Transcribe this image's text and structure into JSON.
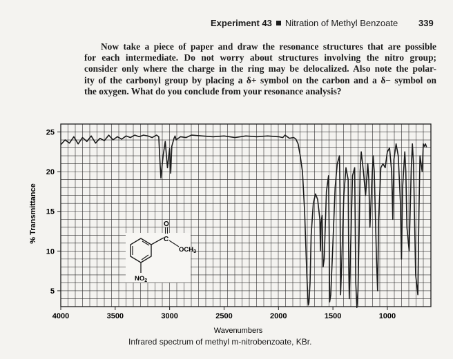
{
  "header": {
    "experiment": "Experiment 43",
    "title": "Nitration of Methyl Benzoate",
    "page_number": "339"
  },
  "paragraph": {
    "lines": [
      "Now take a piece of paper and draw the resonance structures that are possible",
      "for each intermediate. Do not worry about structures involving the nitro group;",
      "consider only where the charge in the ring may be delocalized. Also note the polar-",
      "ity of the carbonyl group by placing a δ+ symbol on the carbon and a δ− symbol on",
      "the oxygen. What do you conclude from your resonance analysis?"
    ]
  },
  "chart_data": {
    "type": "line",
    "title": "Infrared spectrum of methyl m-nitrobenzoate, KBr.",
    "xlabel": "Wavenumbers",
    "ylabel": "% Transmittance",
    "xlim": [
      4000,
      600
    ],
    "ylim": [
      3,
      26
    ],
    "x_ticks": [
      4000,
      3500,
      3000,
      2500,
      2000,
      1500,
      1000
    ],
    "y_ticks": [
      5,
      10,
      15,
      20,
      25
    ],
    "grid": true,
    "series": [
      {
        "name": "methyl m-nitrobenzoate",
        "x": [
          4000,
          3960,
          3920,
          3880,
          3840,
          3800,
          3760,
          3720,
          3680,
          3640,
          3600,
          3560,
          3520,
          3480,
          3440,
          3400,
          3360,
          3320,
          3280,
          3240,
          3200,
          3160,
          3120,
          3100,
          3090,
          3080,
          3060,
          3040,
          3020,
          3000,
          2990,
          2980,
          2960,
          2950,
          2940,
          2900,
          2850,
          2800,
          2700,
          2600,
          2500,
          2400,
          2300,
          2200,
          2100,
          2000,
          1960,
          1940,
          1900,
          1860,
          1840,
          1820,
          1800,
          1780,
          1760,
          1740,
          1730,
          1725,
          1720,
          1710,
          1700,
          1680,
          1660,
          1640,
          1620,
          1615,
          1610,
          1600,
          1590,
          1580,
          1560,
          1540,
          1535,
          1530,
          1520,
          1500,
          1480,
          1460,
          1440,
          1435,
          1430,
          1420,
          1400,
          1380,
          1360,
          1355,
          1350,
          1340,
          1320,
          1300,
          1290,
          1280,
          1270,
          1260,
          1250,
          1240,
          1220,
          1200,
          1180,
          1170,
          1160,
          1140,
          1130,
          1120,
          1100,
          1090,
          1080,
          1060,
          1040,
          1020,
          1000,
          980,
          960,
          950,
          940,
          920,
          900,
          880,
          870,
          860,
          840,
          830,
          820,
          800,
          780,
          770,
          760,
          740,
          720,
          710,
          700,
          680,
          670,
          660,
          650,
          640
        ],
        "y": [
          23.4,
          24.0,
          23.6,
          24.4,
          23.5,
          24.3,
          23.8,
          24.5,
          23.6,
          24.2,
          23.9,
          24.6,
          24.0,
          24.4,
          24.1,
          24.5,
          24.3,
          24.6,
          24.4,
          24.6,
          24.5,
          24.3,
          24.6,
          24.4,
          21.5,
          19.2,
          22.0,
          23.8,
          20.5,
          22.9,
          19.8,
          23.2,
          24.2,
          24.5,
          24.0,
          24.4,
          24.3,
          24.6,
          24.5,
          24.4,
          24.5,
          24.3,
          24.5,
          24.4,
          24.5,
          24.4,
          24.3,
          24.6,
          24.2,
          24.3,
          24.1,
          23.5,
          22.0,
          20.0,
          15.0,
          7.0,
          4.0,
          3.2,
          3.5,
          6.0,
          12.0,
          16.0,
          17.2,
          16.5,
          14.0,
          10.0,
          13.5,
          14.5,
          8.0,
          9.0,
          17.5,
          19.5,
          13.0,
          3.6,
          4.5,
          11.0,
          18.0,
          21.0,
          22.0,
          17.0,
          4.5,
          8.0,
          17.0,
          20.5,
          19.0,
          8.0,
          4.0,
          9.0,
          19.5,
          20.5,
          6.0,
          2.9,
          5.0,
          12.0,
          20.0,
          22.5,
          20.0,
          17.0,
          21.0,
          19.0,
          13.0,
          19.5,
          22.0,
          20.0,
          9.0,
          5.0,
          14.0,
          20.5,
          21.0,
          20.5,
          22.5,
          23.0,
          20.0,
          14.0,
          21.5,
          23.5,
          22.0,
          16.0,
          9.0,
          18.0,
          22.5,
          20.0,
          13.0,
          10.0,
          20.5,
          23.5,
          21.0,
          7.0,
          4.5,
          15.0,
          22.0,
          20.0,
          23.5,
          23.2,
          23.5,
          23.1
        ]
      }
    ],
    "molecule": {
      "carbonyl_o": "O",
      "c_label": "C",
      "ester_label": "OCH",
      "ester_sub": "3",
      "nitro_label": "NO",
      "nitro_sub": "2"
    }
  }
}
